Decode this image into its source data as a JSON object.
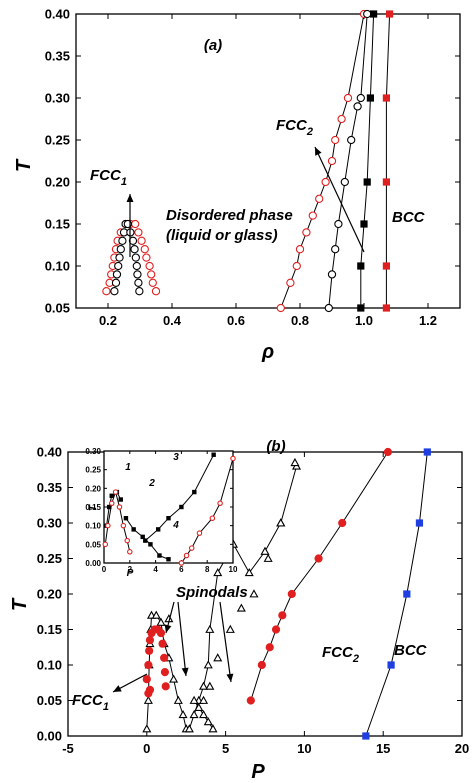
{
  "chart_data": [
    {
      "id": "a",
      "type": "scatter",
      "panel_label": "(a)",
      "xlabel": "ρ",
      "ylabel": "T",
      "xlim": [
        0.1,
        1.3
      ],
      "ylim": [
        0.05,
        0.4
      ],
      "xticks": [
        "0.2",
        "0.4",
        "0.6",
        "0.8",
        "1.0",
        "1.2"
      ],
      "yticks": [
        "0.05",
        "0.10",
        "0.15",
        "0.20",
        "0.25",
        "0.30",
        "0.35",
        "0.40"
      ],
      "series": [
        {
          "color": "#e02020",
          "marker": "open-circle",
          "line": false,
          "points": [
            [
              0.195,
              0.07
            ],
            [
              0.205,
              0.08
            ],
            [
              0.21,
              0.09
            ],
            [
              0.215,
              0.1
            ],
            [
              0.22,
              0.11
            ],
            [
              0.225,
              0.12
            ],
            [
              0.23,
              0.13
            ],
            [
              0.24,
              0.14
            ],
            [
              0.255,
              0.15
            ],
            [
              0.27,
              0.15
            ],
            [
              0.285,
              0.15
            ],
            [
              0.295,
              0.14
            ],
            [
              0.305,
              0.13
            ],
            [
              0.315,
              0.12
            ],
            [
              0.32,
              0.11
            ],
            [
              0.33,
              0.1
            ],
            [
              0.335,
              0.09
            ],
            [
              0.34,
              0.08
            ],
            [
              0.35,
              0.07
            ]
          ]
        },
        {
          "color": "#000000",
          "marker": "open-circle",
          "line": false,
          "points": [
            [
              0.22,
              0.07
            ],
            [
              0.225,
              0.08
            ],
            [
              0.228,
              0.09
            ],
            [
              0.232,
              0.1
            ],
            [
              0.236,
              0.11
            ],
            [
              0.24,
              0.12
            ],
            [
              0.245,
              0.13
            ],
            [
              0.25,
              0.14
            ],
            [
              0.255,
              0.15
            ],
            [
              0.262,
              0.15
            ],
            [
              0.27,
              0.14
            ],
            [
              0.278,
              0.13
            ],
            [
              0.283,
              0.12
            ],
            [
              0.287,
              0.11
            ],
            [
              0.29,
              0.1
            ],
            [
              0.292,
              0.09
            ],
            [
              0.295,
              0.08
            ],
            [
              0.298,
              0.07
            ]
          ]
        },
        {
          "color": "#e02020",
          "marker": "open-circle",
          "line": true,
          "points": [
            [
              0.74,
              0.05
            ],
            [
              0.77,
              0.08
            ],
            [
              0.79,
              0.1
            ],
            [
              0.8,
              0.12
            ],
            [
              0.82,
              0.14
            ],
            [
              0.84,
              0.16
            ],
            [
              0.86,
              0.18
            ],
            [
              0.88,
              0.2
            ],
            [
              0.9,
              0.225
            ],
            [
              0.91,
              0.25
            ],
            [
              0.93,
              0.275
            ],
            [
              0.95,
              0.3
            ],
            [
              1.0,
              0.4
            ]
          ]
        },
        {
          "color": "#000000",
          "marker": "open-circle",
          "line": true,
          "points": [
            [
              0.89,
              0.05
            ],
            [
              0.9,
              0.09
            ],
            [
              0.91,
              0.12
            ],
            [
              0.92,
              0.15
            ],
            [
              0.94,
              0.2
            ],
            [
              0.96,
              0.25
            ],
            [
              0.98,
              0.29
            ],
            [
              0.99,
              0.3
            ],
            [
              1.01,
              0.4
            ]
          ]
        },
        {
          "color": "#000000",
          "marker": "filled-square",
          "line": true,
          "points": [
            [
              0.99,
              0.05
            ],
            [
              0.99,
              0.1
            ],
            [
              1.0,
              0.15
            ],
            [
              1.01,
              0.2
            ],
            [
              1.02,
              0.3
            ],
            [
              1.03,
              0.4
            ]
          ]
        },
        {
          "color": "#e02020",
          "marker": "filled-square",
          "line": true,
          "points": [
            [
              1.07,
              0.05
            ],
            [
              1.07,
              0.1
            ],
            [
              1.07,
              0.2
            ],
            [
              1.07,
              0.3
            ],
            [
              1.08,
              0.4
            ]
          ]
        }
      ],
      "annotations": [
        {
          "text": "FCC",
          "sub": "1"
        },
        {
          "text": "FCC",
          "sub": "2"
        },
        {
          "text": "Disordered phase"
        },
        {
          "text": "(liquid or glass)"
        },
        {
          "text": "BCC"
        }
      ]
    },
    {
      "id": "b",
      "type": "scatter",
      "panel_label": "(b)",
      "xlabel": "P",
      "ylabel": "T",
      "xlim": [
        -5,
        20
      ],
      "ylim": [
        0.0,
        0.4
      ],
      "xticks": [
        "-5",
        "0",
        "5",
        "10",
        "15",
        "20"
      ],
      "yticks": [
        "0.00",
        "0.05",
        "0.10",
        "0.15",
        "0.20",
        "0.25",
        "0.30",
        "0.35",
        "0.40"
      ],
      "series": [
        {
          "color": "#000000",
          "marker": "open-triangle",
          "line": true,
          "points": [
            [
              0.0,
              0.01
            ],
            [
              0.1,
              0.05
            ],
            [
              0.15,
              0.1
            ],
            [
              0.2,
              0.13
            ],
            [
              0.25,
              0.15
            ],
            [
              0.3,
              0.17
            ],
            [
              0.6,
              0.17
            ],
            [
              0.9,
              0.16
            ],
            [
              1.1,
              0.13
            ],
            [
              1.4,
              0.11
            ],
            [
              1.7,
              0.08
            ],
            [
              2.0,
              0.05
            ],
            [
              2.3,
              0.03
            ],
            [
              2.5,
              0.01
            ]
          ]
        },
        {
          "color": "#000000",
          "marker": "open-triangle",
          "line": true,
          "points": [
            [
              2.7,
              0.01
            ],
            [
              3.0,
              0.03
            ],
            [
              3.3,
              0.05
            ],
            [
              3.6,
              0.07
            ],
            [
              3.9,
              0.1
            ],
            [
              4.0,
              0.15
            ],
            [
              4.5,
              0.23
            ],
            [
              5.0,
              0.25
            ],
            [
              5.5,
              0.27
            ],
            [
              6.5,
              0.23
            ],
            [
              7.5,
              0.26
            ],
            [
              8.5,
              0.3
            ],
            [
              9.5,
              0.38
            ]
          ]
        },
        {
          "color": "#000000",
          "marker": "open-triangle",
          "line": true,
          "points": [
            [
              3.0,
              0.05
            ],
            [
              3.3,
              0.04
            ],
            [
              3.6,
              0.03
            ],
            [
              3.9,
              0.02
            ],
            [
              4.2,
              0.01
            ]
          ]
        },
        {
          "color": "#000000",
          "marker": "open-triangle",
          "line": false,
          "points": [
            [
              1.4,
              0.165
            ],
            [
              3.6,
              0.05
            ],
            [
              4.0,
              0.07
            ],
            [
              4.5,
              0.11
            ],
            [
              5.3,
              0.15
            ],
            [
              6.0,
              0.18
            ],
            [
              6.8,
              0.2
            ],
            [
              7.7,
              0.25
            ],
            [
              8.5,
              0.3
            ],
            [
              9.4,
              0.385
            ]
          ]
        },
        {
          "color": "#e02020",
          "marker": "filled-circle",
          "line": true,
          "points": [
            [
              6.6,
              0.05
            ],
            [
              7.3,
              0.1
            ],
            [
              7.8,
              0.125
            ],
            [
              8.2,
              0.15
            ],
            [
              8.6,
              0.17
            ],
            [
              9.2,
              0.2
            ],
            [
              10.9,
              0.25
            ],
            [
              12.4,
              0.3
            ],
            [
              15.3,
              0.4
            ]
          ]
        },
        {
          "color": "#e02020",
          "marker": "filled-circle",
          "line": false,
          "points": [
            [
              0.0,
              0.08
            ],
            [
              0.1,
              0.1
            ],
            [
              0.15,
              0.12
            ],
            [
              0.2,
              0.135
            ],
            [
              0.3,
              0.145
            ],
            [
              0.5,
              0.15
            ],
            [
              0.7,
              0.15
            ],
            [
              0.9,
              0.145
            ],
            [
              1.0,
              0.13
            ],
            [
              1.1,
              0.11
            ],
            [
              1.15,
              0.09
            ],
            [
              1.2,
              0.07
            ],
            [
              0.1,
              0.06
            ],
            [
              0.2,
              0.065
            ]
          ]
        },
        {
          "color": "#1f3fe0",
          "marker": "filled-square",
          "line": true,
          "points": [
            [
              13.9,
              0.0
            ],
            [
              15.5,
              0.1
            ],
            [
              16.5,
              0.2
            ],
            [
              17.3,
              0.3
            ],
            [
              17.8,
              0.4
            ]
          ]
        }
      ],
      "annotations": [
        {
          "text": "Spinodals"
        },
        {
          "text": "FCC",
          "sub": "2"
        },
        {
          "text": "BCC"
        },
        {
          "text": "FCC",
          "sub": "1"
        }
      ],
      "inset": {
        "xlabel": "P",
        "ylabel": "T",
        "xlim": [
          0,
          10
        ],
        "ylim": [
          0.0,
          0.3
        ],
        "xticks": [
          "0",
          "2",
          "4",
          "6",
          "8",
          "10"
        ],
        "yticks": [
          "0.00",
          "0.05",
          "0.10",
          "0.15",
          "0.20",
          "0.25",
          "0.30"
        ],
        "curve_labels": [
          "1",
          "2",
          "3",
          "4"
        ],
        "series": [
          {
            "color": "#000000",
            "marker": "filled-square",
            "line": true,
            "points": [
              [
                0.2,
                0.1
              ],
              [
                0.4,
                0.15
              ],
              [
                0.6,
                0.18
              ],
              [
                1.0,
                0.19
              ],
              [
                1.3,
                0.17
              ]
            ]
          },
          {
            "color": "#e02020",
            "marker": "open-circle",
            "line": true,
            "points": [
              [
                0.1,
                0.05
              ],
              [
                0.3,
                0.1
              ],
              [
                0.6,
                0.16
              ],
              [
                0.9,
                0.19
              ],
              [
                1.2,
                0.15
              ],
              [
                1.5,
                0.1
              ],
              [
                1.8,
                0.06
              ],
              [
                2.0,
                0.03
              ]
            ]
          },
          {
            "color": "#000000",
            "marker": "filled-square",
            "line": true,
            "points": [
              [
                1.7,
                0.12
              ],
              [
                2.3,
                0.09
              ],
              [
                3.0,
                0.07
              ],
              [
                3.6,
                0.05
              ],
              [
                4.3,
                0.02
              ],
              [
                5.0,
                0.01
              ]
            ]
          },
          {
            "color": "#000000",
            "marker": "filled-square",
            "line": true,
            "points": [
              [
                3.2,
                0.06
              ],
              [
                4.2,
                0.09
              ],
              [
                5.0,
                0.12
              ],
              [
                6.0,
                0.15
              ],
              [
                7.0,
                0.19
              ],
              [
                8.5,
                0.29
              ]
            ]
          },
          {
            "color": "#e02020",
            "marker": "open-circle",
            "line": true,
            "points": [
              [
                6.0,
                0.0
              ],
              [
                6.4,
                0.02
              ],
              [
                6.8,
                0.04
              ],
              [
                7.4,
                0.08
              ],
              [
                8.4,
                0.12
              ],
              [
                9.0,
                0.16
              ],
              [
                10.0,
                0.28
              ]
            ]
          }
        ]
      }
    }
  ]
}
